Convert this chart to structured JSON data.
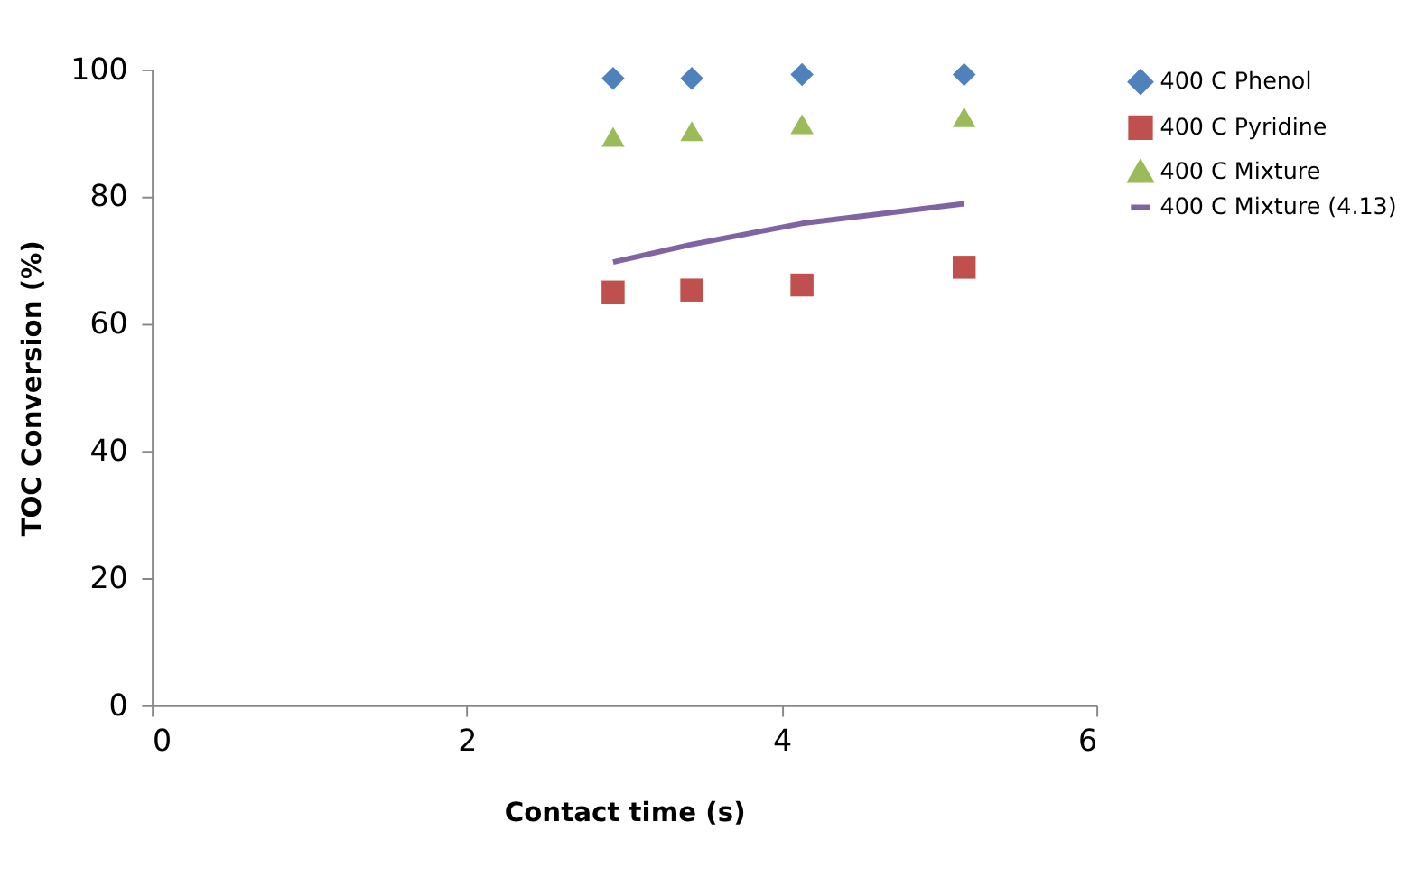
{
  "chart_data": {
    "type": "scatter",
    "xlabel": "Contact time (s)",
    "ylabel": "TOC Conversion (%)",
    "xlim": [
      0,
      6
    ],
    "xticks": [
      0,
      2,
      4,
      6
    ],
    "ylim": [
      0,
      100
    ],
    "yticks": [
      0,
      20,
      40,
      60,
      80,
      100
    ],
    "grid": false,
    "legend": "right",
    "series": [
      {
        "name": "400 C Phenol",
        "color": "#4f81bd",
        "marker": "diamond",
        "x": [
          2.93,
          3.43,
          4.13,
          5.16
        ],
        "values": [
          98.6,
          98.6,
          99.2,
          99.2
        ]
      },
      {
        "name": "400 C Pyridine",
        "color": "#c0504d",
        "marker": "square",
        "x": [
          2.93,
          3.43,
          4.13,
          5.16
        ],
        "values": [
          65.0,
          65.3,
          66.1,
          68.9
        ]
      },
      {
        "name": "400 C Mixture",
        "color": "#9bbb59",
        "marker": "triangle",
        "x": [
          2.93,
          3.43,
          4.13,
          5.16
        ],
        "values": [
          89.4,
          90.3,
          91.4,
          92.5
        ]
      },
      {
        "name": "400 C Mixture (4.13)",
        "type": "line",
        "color": "#8064a2",
        "line_style": "solid",
        "marker": "none",
        "x": [
          2.93,
          3.43,
          4.13,
          5.16
        ],
        "values": [
          69.7,
          72.5,
          75.8,
          78.9
        ]
      }
    ]
  }
}
